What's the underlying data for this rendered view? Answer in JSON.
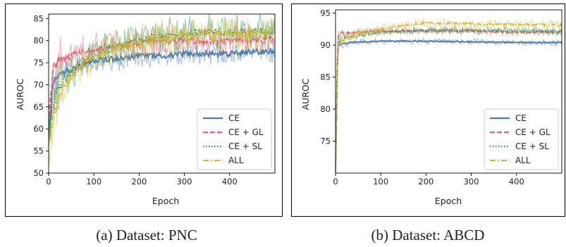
{
  "chart_data": [
    {
      "type": "line",
      "caption": "(a) Dataset: PNC",
      "xlabel": "Epoch",
      "ylabel": "AUROC",
      "xlim": [
        0,
        500
      ],
      "ylim": [
        50,
        86
      ],
      "xticks": [
        0,
        100,
        200,
        300,
        400
      ],
      "yticks": [
        50,
        55,
        60,
        65,
        70,
        75,
        80,
        85
      ],
      "grid": false,
      "legend_position": "lower-right",
      "series": [
        {
          "name": "CE",
          "color": "#4b77a8",
          "dash": "solid",
          "x": [
            0,
            10,
            25,
            50,
            75,
            100,
            150,
            200,
            250,
            300,
            350,
            400,
            450,
            500
          ],
          "values": [
            58,
            71,
            72.5,
            73.5,
            74.5,
            75.5,
            76,
            76.5,
            76.5,
            77,
            77,
            77,
            77.5,
            77.5
          ],
          "noise": 2.5
        },
        {
          "name": "CE + GL",
          "color": "#e8617a",
          "dash": "dashed",
          "x": [
            0,
            10,
            25,
            50,
            75,
            100,
            150,
            200,
            250,
            300,
            350,
            400,
            450,
            500
          ],
          "values": [
            62,
            74,
            75.5,
            76.5,
            77.5,
            78,
            79,
            79.5,
            80,
            80,
            80,
            80,
            80,
            80.5
          ],
          "noise": 3
        },
        {
          "name": "CE + SL",
          "color": "#2e8b45",
          "dash": "dotted",
          "x": [
            0,
            10,
            25,
            50,
            75,
            100,
            150,
            200,
            250,
            300,
            350,
            400,
            450,
            500
          ],
          "values": [
            57,
            66,
            70,
            73,
            75,
            76.5,
            78.5,
            80,
            81,
            81.5,
            82,
            82,
            82,
            82
          ],
          "noise": 3.5
        },
        {
          "name": "ALL",
          "color": "#d4b73d",
          "dash": "dashdot",
          "x": [
            0,
            10,
            25,
            50,
            75,
            100,
            150,
            200,
            250,
            300,
            350,
            400,
            450,
            500
          ],
          "values": [
            55,
            63,
            68,
            72,
            74.5,
            76.5,
            78.5,
            79.5,
            80.5,
            81,
            81.5,
            81.5,
            81.5,
            82
          ],
          "noise": 4
        }
      ]
    },
    {
      "type": "line",
      "caption": "(b)  Dataset: ABCD",
      "xlabel": "Epoch",
      "ylabel": "AUROC",
      "xlim": [
        0,
        500
      ],
      "ylim": [
        70,
        95.5
      ],
      "xticks": [
        0,
        100,
        200,
        300,
        400
      ],
      "yticks": [
        75,
        80,
        85,
        90,
        95
      ],
      "grid": false,
      "legend_position": "lower-right",
      "series": [
        {
          "name": "CE",
          "color": "#4b77a8",
          "dash": "solid",
          "x": [
            0,
            5,
            20,
            50,
            100,
            150,
            200,
            300,
            400,
            500
          ],
          "values": [
            70,
            90,
            90.3,
            90.5,
            90.6,
            90.6,
            90.6,
            90.5,
            90.4,
            90.4
          ],
          "noise": 0.4
        },
        {
          "name": "CE + GL",
          "color": "#e8617a",
          "dash": "dashed",
          "x": [
            0,
            5,
            20,
            50,
            100,
            150,
            200,
            300,
            400,
            500
          ],
          "values": [
            72,
            91.5,
            92,
            92,
            92.2,
            92.2,
            92.2,
            92.2,
            92,
            92
          ],
          "noise": 0.5
        },
        {
          "name": "CE + SL",
          "color": "#2e8b45",
          "dash": "dotted",
          "x": [
            0,
            5,
            20,
            50,
            100,
            150,
            200,
            300,
            400,
            500
          ],
          "values": [
            71,
            90.5,
            91,
            91.5,
            92,
            92.2,
            92.3,
            92.3,
            92.2,
            92.2
          ],
          "noise": 0.6
        },
        {
          "name": "ALL",
          "color": "#d4b73d",
          "dash": "dashdot",
          "x": [
            0,
            5,
            20,
            50,
            100,
            150,
            200,
            300,
            400,
            500
          ],
          "values": [
            72,
            90,
            91,
            92,
            92.5,
            93,
            93.5,
            93.3,
            93.2,
            93.2
          ],
          "noise": 0.7
        }
      ]
    }
  ]
}
